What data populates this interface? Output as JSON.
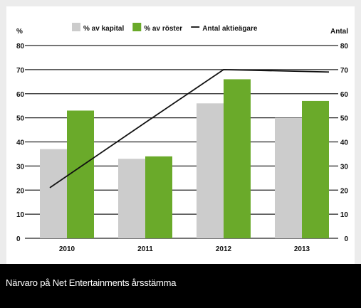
{
  "chart_data": {
    "type": "bar",
    "categories": [
      "2010",
      "2011",
      "2012",
      "2013"
    ],
    "series": [
      {
        "name": "% av kapital",
        "kind": "bar",
        "axis": "left",
        "color": "#cccccc",
        "values": [
          37,
          33,
          56,
          50
        ]
      },
      {
        "name": "% av röster",
        "kind": "bar",
        "axis": "left",
        "color": "#6aaa2a",
        "values": [
          53,
          34,
          66,
          57
        ]
      },
      {
        "name": "Antal aktieägare",
        "kind": "line",
        "axis": "right",
        "color": "#111111",
        "values": [
          21,
          48,
          70,
          69
        ]
      }
    ],
    "y_left": {
      "unit": "%",
      "min": 0,
      "max": 80,
      "ticks": [
        "0",
        "10",
        "20",
        "30",
        "40",
        "50",
        "60",
        "70",
        "80"
      ]
    },
    "y_right": {
      "unit": "Antal",
      "min": 0,
      "max": 80,
      "ticks": [
        "0",
        "10",
        "20",
        "30",
        "40",
        "50",
        "60",
        "70",
        "80"
      ]
    },
    "grid": true,
    "legend": "top"
  },
  "caption": "Närvaro på Net Entertainments årsstämma"
}
